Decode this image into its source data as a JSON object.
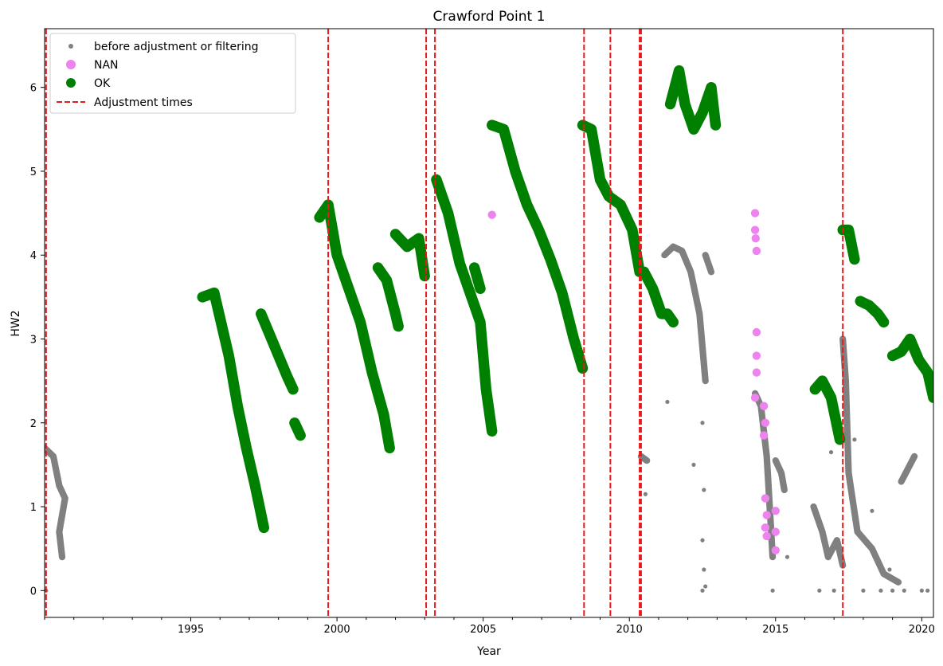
{
  "chart_data": {
    "type": "scatter",
    "title": "Crawford Point 1",
    "xlabel": "Year",
    "ylabel": "HW2",
    "xlim": [
      1990.0,
      2020.4
    ],
    "ylim": [
      -0.32,
      6.7
    ],
    "x_ticks": [
      1995,
      2000,
      2005,
      2010,
      2015,
      2020
    ],
    "x_minor_step": 1,
    "y_ticks": [
      0,
      1,
      2,
      3,
      4,
      5,
      6
    ],
    "grid": false,
    "legend_position": "top-left",
    "legend": [
      {
        "label": "before adjustment or filtering",
        "marker": "small-dot",
        "color": "#808080"
      },
      {
        "label": "NAN",
        "marker": "dot",
        "color": "#ee82ee"
      },
      {
        "label": "OK",
        "marker": "dot",
        "color": "#008000"
      },
      {
        "label": "Adjustment times",
        "marker": "dashed-line",
        "color": "#e41a1c"
      }
    ],
    "adjustment_times": [
      1990.05,
      1999.7,
      2003.05,
      2003.35,
      2008.45,
      2009.35,
      2010.35,
      2010.4,
      2017.3
    ],
    "series": [
      {
        "name": "OK",
        "color": "#008000",
        "segments": [
          [
            [
              1995.4,
              3.5
            ],
            [
              1995.8,
              3.55
            ],
            [
              1996.3,
              2.8
            ],
            [
              1996.6,
              2.2
            ],
            [
              1996.9,
              1.7
            ],
            [
              1997.2,
              1.25
            ],
            [
              1997.5,
              0.75
            ]
          ],
          [
            [
              1997.4,
              3.3
            ],
            [
              1997.7,
              3.05
            ],
            [
              1998.0,
              2.8
            ],
            [
              1998.3,
              2.55
            ],
            [
              1998.5,
              2.4
            ]
          ],
          [
            [
              1998.55,
              2.0
            ],
            [
              1998.75,
              1.85
            ]
          ],
          [
            [
              1999.4,
              4.45
            ],
            [
              1999.7,
              4.6
            ],
            [
              2000.0,
              4.0
            ],
            [
              2000.4,
              3.6
            ],
            [
              2000.8,
              3.2
            ],
            [
              2001.2,
              2.6
            ],
            [
              2001.6,
              2.1
            ],
            [
              2001.8,
              1.7
            ]
          ],
          [
            [
              2001.4,
              3.85
            ],
            [
              2001.7,
              3.7
            ],
            [
              2002.0,
              3.3
            ],
            [
              2002.1,
              3.15
            ]
          ],
          [
            [
              2002.0,
              4.25
            ],
            [
              2002.4,
              4.1
            ],
            [
              2002.8,
              4.2
            ],
            [
              2003.0,
              3.75
            ]
          ],
          [
            [
              2003.4,
              4.9
            ],
            [
              2003.8,
              4.5
            ],
            [
              2004.2,
              3.9
            ],
            [
              2004.6,
              3.5
            ],
            [
              2004.9,
              3.2
            ],
            [
              2005.1,
              2.4
            ],
            [
              2005.3,
              1.9
            ]
          ],
          [
            [
              2004.7,
              3.85
            ],
            [
              2004.9,
              3.6
            ]
          ],
          [
            [
              2005.3,
              5.55
            ],
            [
              2005.7,
              5.5
            ],
            [
              2006.1,
              5.0
            ],
            [
              2006.5,
              4.6
            ],
            [
              2006.9,
              4.3
            ],
            [
              2007.3,
              3.95
            ],
            [
              2007.7,
              3.55
            ],
            [
              2008.1,
              3.0
            ],
            [
              2008.4,
              2.65
            ]
          ],
          [
            [
              2008.4,
              5.55
            ],
            [
              2008.7,
              5.5
            ],
            [
              2009.0,
              4.9
            ],
            [
              2009.3,
              4.7
            ],
            [
              2009.7,
              4.6
            ],
            [
              2010.1,
              4.3
            ],
            [
              2010.35,
              3.8
            ]
          ],
          [
            [
              2010.5,
              3.8
            ],
            [
              2010.8,
              3.6
            ],
            [
              2011.1,
              3.3
            ],
            [
              2011.3,
              3.3
            ],
            [
              2011.5,
              3.2
            ]
          ],
          [
            [
              2011.4,
              5.8
            ],
            [
              2011.7,
              6.2
            ],
            [
              2011.9,
              5.8
            ],
            [
              2012.2,
              5.5
            ],
            [
              2012.5,
              5.7
            ],
            [
              2012.8,
              6.0
            ],
            [
              2012.95,
              5.55
            ]
          ],
          [
            [
              2016.35,
              2.4
            ],
            [
              2016.6,
              2.5
            ],
            [
              2016.9,
              2.3
            ],
            [
              2017.2,
              1.8
            ]
          ],
          [
            [
              2017.3,
              4.3
            ],
            [
              2017.5,
              4.3
            ],
            [
              2017.7,
              3.95
            ]
          ],
          [
            [
              2017.9,
              3.45
            ],
            [
              2018.2,
              3.4
            ],
            [
              2018.5,
              3.3
            ],
            [
              2018.7,
              3.2
            ]
          ],
          [
            [
              2019.0,
              2.8
            ],
            [
              2019.3,
              2.85
            ],
            [
              2019.6,
              3.0
            ],
            [
              2019.9,
              2.75
            ],
            [
              2020.2,
              2.6
            ],
            [
              2020.4,
              2.3
            ]
          ]
        ]
      },
      {
        "name": "NAN",
        "color": "#ee82ee",
        "points": [
          [
            2005.3,
            4.48
          ],
          [
            2014.3,
            4.5
          ],
          [
            2014.3,
            4.3
          ],
          [
            2014.32,
            4.2
          ],
          [
            2014.35,
            4.05
          ],
          [
            2014.35,
            3.08
          ],
          [
            2014.35,
            2.8
          ],
          [
            2014.35,
            2.6
          ],
          [
            2014.3,
            2.3
          ],
          [
            2014.6,
            2.2
          ],
          [
            2014.65,
            2.0
          ],
          [
            2014.6,
            1.85
          ],
          [
            2014.65,
            1.1
          ],
          [
            2014.7,
            0.9
          ],
          [
            2014.65,
            0.75
          ],
          [
            2014.7,
            0.65
          ],
          [
            2015.0,
            0.95
          ],
          [
            2015.0,
            0.7
          ],
          [
            2015.0,
            0.48
          ]
        ]
      },
      {
        "name": "before adjustment or filtering",
        "color": "#808080",
        "segments": [
          [
            [
              1990.0,
              1.7
            ],
            [
              1990.3,
              1.6
            ],
            [
              1990.5,
              1.25
            ],
            [
              1990.7,
              1.1
            ],
            [
              1990.5,
              0.7
            ],
            [
              1990.6,
              0.4
            ]
          ],
          [
            [
              2010.4,
              1.6
            ],
            [
              2010.6,
              1.55
            ]
          ],
          [
            [
              2011.2,
              4.0
            ],
            [
              2011.5,
              4.1
            ],
            [
              2011.8,
              4.05
            ],
            [
              2012.1,
              3.8
            ],
            [
              2012.4,
              3.3
            ],
            [
              2012.6,
              2.5
            ]
          ],
          [
            [
              2012.6,
              4.0
            ],
            [
              2012.8,
              3.8
            ]
          ],
          [
            [
              2014.3,
              2.35
            ],
            [
              2014.5,
              2.2
            ],
            [
              2014.7,
              1.6
            ],
            [
              2014.8,
              1.0
            ],
            [
              2014.9,
              0.4
            ]
          ],
          [
            [
              2015.0,
              1.55
            ],
            [
              2015.2,
              1.4
            ],
            [
              2015.3,
              1.2
            ]
          ],
          [
            [
              2016.3,
              1.0
            ],
            [
              2016.6,
              0.7
            ],
            [
              2016.8,
              0.4
            ],
            [
              2017.1,
              0.6
            ],
            [
              2017.3,
              0.3
            ]
          ],
          [
            [
              2017.3,
              3.0
            ],
            [
              2017.4,
              2.5
            ],
            [
              2017.5,
              1.4
            ],
            [
              2017.8,
              0.7
            ],
            [
              2018.3,
              0.5
            ],
            [
              2018.7,
              0.2
            ],
            [
              2019.2,
              0.1
            ]
          ],
          [
            [
              2019.3,
              1.3
            ],
            [
              2019.6,
              1.5
            ],
            [
              2019.75,
              1.6
            ]
          ]
        ],
        "points": [
          [
            2011.3,
            2.25
          ],
          [
            2010.55,
            1.15
          ],
          [
            2012.2,
            1.5
          ],
          [
            2012.5,
            2.0
          ],
          [
            2012.55,
            1.2
          ],
          [
            2012.5,
            0.6
          ],
          [
            2012.55,
            0.25
          ],
          [
            2014.9,
            0.0
          ],
          [
            2015.4,
            0.4
          ],
          [
            2016.5,
            0.0
          ],
          [
            2017.0,
            0.0
          ],
          [
            2018.0,
            0.0
          ],
          [
            2018.6,
            0.0
          ],
          [
            2019.0,
            0.0
          ],
          [
            2019.4,
            0.0
          ],
          [
            2020.0,
            0.0
          ],
          [
            2020.2,
            0.0
          ],
          [
            2012.5,
            0.0
          ],
          [
            2012.6,
            0.05
          ],
          [
            1990.05,
            0.0
          ],
          [
            2018.3,
            0.95
          ],
          [
            2018.9,
            0.25
          ],
          [
            2016.9,
            1.65
          ],
          [
            2017.7,
            1.8
          ]
        ]
      }
    ]
  }
}
